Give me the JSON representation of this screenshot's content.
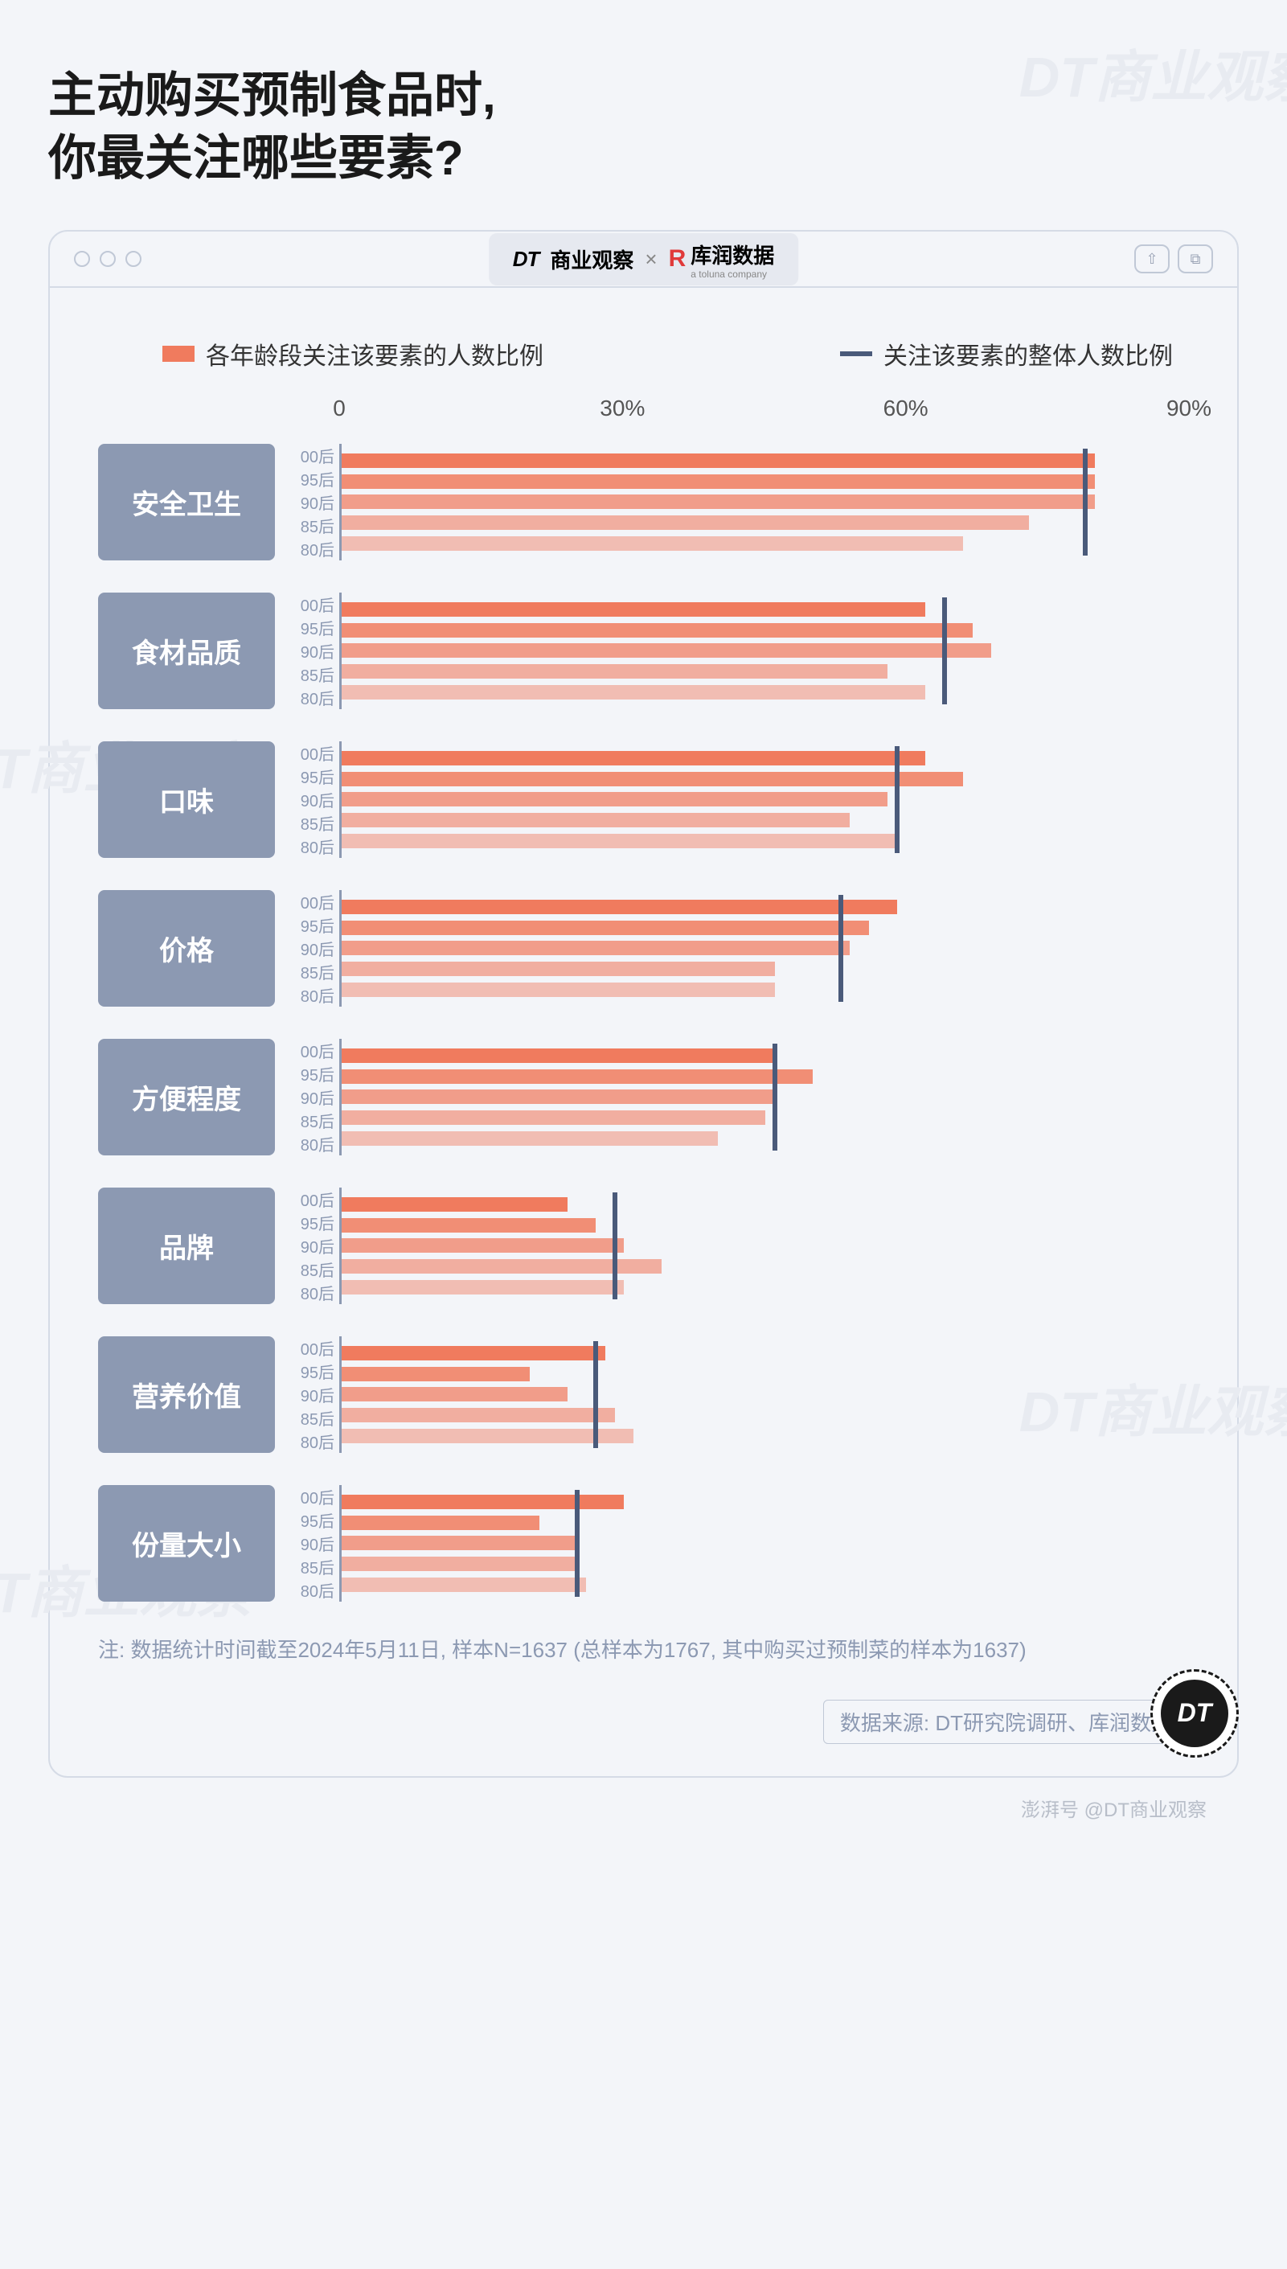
{
  "title_line1": "主动购买预制食品时,",
  "title_line2": "你最关注哪些要素?",
  "header": {
    "brand_dt": "DT",
    "brand_dt_suffix": "商业观察",
    "brand_x": "×",
    "brand_kr_icon": "R",
    "brand_kr_text": "库润数据",
    "brand_kr_sub": "a toluna company"
  },
  "legend": {
    "series_label": "各年龄段关注该要素的人数比例",
    "series_color": "#f07b5e",
    "overall_label": "关注该要素的整体人数比例",
    "overall_color": "#4a5a7a"
  },
  "axis": {
    "min": 0,
    "max": 90,
    "ticks": [
      {
        "v": 0,
        "label": "0"
      },
      {
        "v": 30,
        "label": "30%"
      },
      {
        "v": 60,
        "label": "60%"
      },
      {
        "v": 90,
        "label": "90%"
      }
    ],
    "tick_color": "#555555",
    "baseline_color": "#c0c8d6"
  },
  "sublabels": [
    "00后",
    "95后",
    "90后",
    "85后",
    "80后"
  ],
  "bar_opacities": [
    1.0,
    0.85,
    0.72,
    0.58,
    0.45
  ],
  "group_label_bg": "#8c99b2",
  "group_label_fg": "#ffffff",
  "vertical_axis_color": "#8c99b2",
  "groups": [
    {
      "name": "安全卫生",
      "overall": 79,
      "values": [
        80,
        80,
        80,
        73,
        66
      ]
    },
    {
      "name": "食材品质",
      "overall": 64,
      "values": [
        62,
        67,
        69,
        58,
        62
      ]
    },
    {
      "name": "口味",
      "overall": 59,
      "values": [
        62,
        66,
        58,
        54,
        59
      ]
    },
    {
      "name": "价格",
      "overall": 53,
      "values": [
        59,
        56,
        54,
        46,
        46
      ]
    },
    {
      "name": "方便程度",
      "overall": 46,
      "values": [
        46,
        50,
        46,
        45,
        40
      ]
    },
    {
      "name": "品牌",
      "overall": 29,
      "values": [
        24,
        27,
        30,
        34,
        30
      ]
    },
    {
      "name": "营养价值",
      "overall": 27,
      "values": [
        28,
        20,
        24,
        29,
        31
      ]
    },
    {
      "name": "份量大小",
      "overall": 25,
      "values": [
        30,
        21,
        25,
        25,
        26
      ]
    }
  ],
  "footnote": "注: 数据统计时间截至2024年5月11日, 样本N=1637 (总样本为1767, 其中购买过预制菜的样本为1637)",
  "source": "数据来源: DT研究院调研、库润数据",
  "badge_text": "DT",
  "watermark_row": "澎湃号 @DT商业观察",
  "faint_wm_text": "DT商业观察",
  "background_color": "#f3f5f9"
}
